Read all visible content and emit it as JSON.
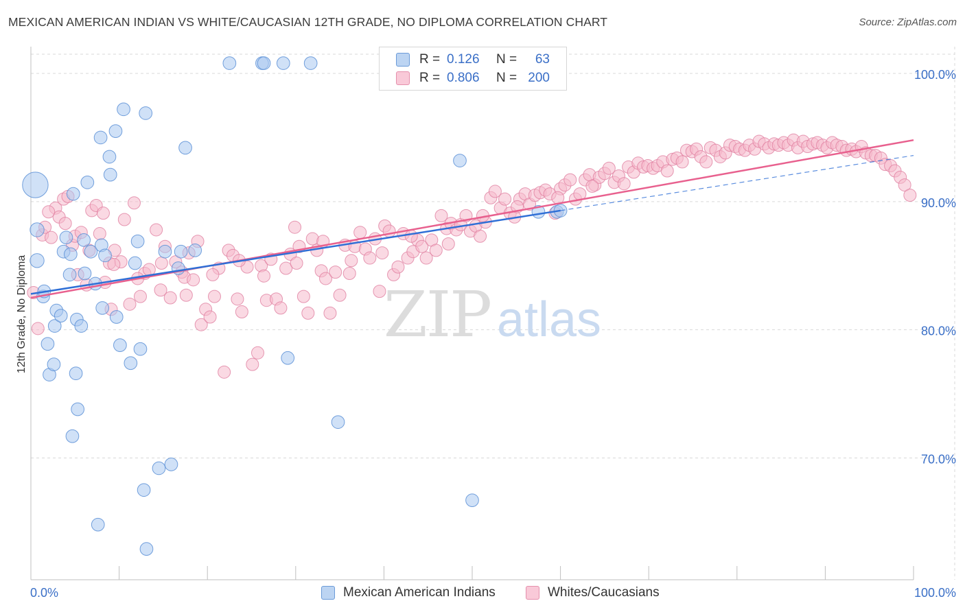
{
  "header": {
    "title": "MEXICAN AMERICAN INDIAN VS WHITE/CAUCASIAN 12TH GRADE, NO DIPLOMA CORRELATION CHART",
    "source": "Source: ZipAtlas.com"
  },
  "watermark": {
    "zip": "ZIP",
    "atlas": "atlas"
  },
  "legend": {
    "rows": [
      {
        "r_label": "R =",
        "r_value": "0.126",
        "n_label": "N =",
        "n_value": "63"
      },
      {
        "r_label": "R =",
        "r_value": "0.806",
        "n_label": "N =",
        "n_value": "200"
      }
    ]
  },
  "bottom_legend": {
    "series1": "Mexican American Indians",
    "series2": "Whites/Caucasians"
  },
  "colors": {
    "blue_fill": "#a9c8f0",
    "blue_stroke": "#5b8fd6",
    "blue_line": "#2f6fd6",
    "pink_fill": "#f5b9cc",
    "pink_stroke": "#e07fa0",
    "pink_line": "#e8608e",
    "tick_label": "#3a6fc7",
    "grid": "#d9d9d9"
  },
  "chart_data": {
    "type": "scatter",
    "title": "MEXICAN AMERICAN INDIAN VS WHITE/CAUCASIAN 12TH GRADE, NO DIPLOMA CORRELATION CHART",
    "xlabel": "",
    "ylabel": "12th Grade, No Diploma",
    "xlim": [
      0,
      100
    ],
    "ylim": [
      60.5,
      101.5
    ],
    "x_tick_labels": [
      {
        "value": 0,
        "label": "0.0%"
      },
      {
        "value": 100,
        "label": "100.0%"
      }
    ],
    "x_minor_ticks": [
      10,
      20,
      30,
      40,
      50,
      60,
      70,
      80,
      90
    ],
    "y_ticks": [
      {
        "value": 100,
        "label": "100.0%"
      },
      {
        "value": 90,
        "label": "90.0%"
      },
      {
        "value": 80,
        "label": "80.0%"
      },
      {
        "value": 70,
        "label": "70.0%"
      }
    ],
    "series": [
      {
        "name": "Mexican American Indians",
        "color": "blue",
        "r": 0.126,
        "n": 63,
        "trend_solid": {
          "x": [
            0,
            60
          ],
          "y": [
            82.8,
            89.3
          ]
        },
        "trend_dashed": {
          "x": [
            60,
            100
          ],
          "y": [
            89.3,
            93.6
          ]
        },
        "points": [
          [
            0.5,
            91.3,
            22
          ],
          [
            0.7,
            87.8,
            12
          ],
          [
            0.7,
            85.4,
            12
          ],
          [
            1.4,
            82.6,
            11
          ],
          [
            1.5,
            83.0,
            11
          ],
          [
            1.9,
            78.9,
            11
          ],
          [
            2.1,
            76.5,
            11
          ],
          [
            2.6,
            77.3,
            11
          ],
          [
            2.7,
            80.3,
            11
          ],
          [
            2.9,
            81.5,
            11
          ],
          [
            3.4,
            81.1,
            11
          ],
          [
            3.7,
            86.1,
            11
          ],
          [
            4.0,
            87.2,
            11
          ],
          [
            4.4,
            84.3,
            11
          ],
          [
            4.5,
            85.9,
            11
          ],
          [
            4.7,
            71.7,
            11
          ],
          [
            4.8,
            90.6,
            11
          ],
          [
            5.1,
            76.6,
            11
          ],
          [
            5.2,
            80.8,
            11
          ],
          [
            5.3,
            73.8,
            11
          ],
          [
            5.7,
            80.3,
            11
          ],
          [
            6.0,
            87.0,
            11
          ],
          [
            6.1,
            84.4,
            11
          ],
          [
            6.4,
            91.5,
            11
          ],
          [
            6.8,
            86.1,
            11
          ],
          [
            7.3,
            83.6,
            11
          ],
          [
            7.6,
            64.8,
            11
          ],
          [
            7.9,
            95.0,
            11
          ],
          [
            8.0,
            86.6,
            11
          ],
          [
            8.1,
            81.7,
            11
          ],
          [
            8.4,
            85.8,
            11
          ],
          [
            8.9,
            93.5,
            11
          ],
          [
            9.0,
            92.1,
            11
          ],
          [
            9.6,
            95.5,
            11
          ],
          [
            9.7,
            81.0,
            11
          ],
          [
            10.1,
            78.8,
            11
          ],
          [
            10.5,
            97.2,
            11
          ],
          [
            11.3,
            77.4,
            11
          ],
          [
            11.8,
            85.2,
            11
          ],
          [
            12.1,
            86.9,
            11
          ],
          [
            12.4,
            78.5,
            11
          ],
          [
            12.8,
            67.5,
            11
          ],
          [
            13.0,
            96.9,
            11
          ],
          [
            13.1,
            62.9,
            11
          ],
          [
            14.5,
            69.2,
            11
          ],
          [
            15.2,
            86.1,
            11
          ],
          [
            15.9,
            69.5,
            11
          ],
          [
            16.7,
            84.8,
            11
          ],
          [
            17.0,
            86.1,
            11
          ],
          [
            17.5,
            94.2,
            11
          ],
          [
            18.6,
            86.2,
            11
          ],
          [
            22.5,
            100.8,
            11
          ],
          [
            26.2,
            100.8,
            11
          ],
          [
            26.4,
            100.8,
            11
          ],
          [
            28.6,
            100.8,
            11
          ],
          [
            29.1,
            77.8,
            11
          ],
          [
            31.7,
            100.8,
            11
          ],
          [
            34.8,
            72.8,
            11
          ],
          [
            48.6,
            93.2,
            11
          ],
          [
            50.0,
            66.7,
            11
          ],
          [
            57.5,
            89.2,
            11
          ],
          [
            59.6,
            89.2,
            11
          ],
          [
            60.0,
            89.3,
            11
          ]
        ]
      },
      {
        "name": "Whites/Caucasians",
        "color": "pink",
        "r": 0.806,
        "n": 200,
        "trend_solid": {
          "x": [
            0,
            100
          ],
          "y": [
            82.5,
            94.8
          ]
        },
        "points": [
          [
            0.3,
            82.9
          ],
          [
            0.8,
            80.1
          ],
          [
            1.3,
            87.4
          ],
          [
            1.6,
            88.0
          ],
          [
            2.3,
            87.2
          ],
          [
            2.8,
            89.5
          ],
          [
            3.2,
            88.8
          ],
          [
            3.7,
            90.2
          ],
          [
            4.2,
            90.4
          ],
          [
            4.7,
            86.6
          ],
          [
            5.0,
            87.3
          ],
          [
            5.3,
            84.3
          ],
          [
            5.7,
            87.6
          ],
          [
            6.3,
            83.5
          ],
          [
            6.9,
            89.3
          ],
          [
            7.4,
            89.7
          ],
          [
            7.8,
            87.5
          ],
          [
            8.2,
            89.1
          ],
          [
            8.4,
            83.7
          ],
          [
            8.9,
            85.2
          ],
          [
            9.1,
            81.6
          ],
          [
            9.5,
            86.2
          ],
          [
            10.2,
            85.3
          ],
          [
            10.6,
            88.6
          ],
          [
            11.2,
            82.0
          ],
          [
            11.7,
            89.9
          ],
          [
            12.4,
            82.6
          ],
          [
            12.9,
            84.4
          ],
          [
            13.4,
            84.7
          ],
          [
            14.2,
            87.8
          ],
          [
            14.8,
            85.2
          ],
          [
            15.2,
            86.5
          ],
          [
            15.8,
            82.5
          ],
          [
            16.4,
            85.3
          ],
          [
            17.1,
            84.5
          ],
          [
            17.4,
            84.1
          ],
          [
            17.9,
            86.0
          ],
          [
            18.4,
            83.9
          ],
          [
            18.9,
            86.9
          ],
          [
            19.3,
            80.4
          ],
          [
            19.8,
            81.6
          ],
          [
            20.3,
            81.0
          ],
          [
            20.8,
            82.6
          ],
          [
            21.3,
            84.8
          ],
          [
            21.9,
            76.7
          ],
          [
            22.4,
            86.2
          ],
          [
            22.9,
            85.8
          ],
          [
            23.4,
            82.4
          ],
          [
            23.9,
            81.4
          ],
          [
            24.5,
            84.9
          ],
          [
            25.1,
            77.3
          ],
          [
            25.7,
            78.2
          ],
          [
            26.1,
            85.0
          ],
          [
            26.7,
            82.3
          ],
          [
            27.2,
            85.5
          ],
          [
            27.8,
            82.4
          ],
          [
            28.3,
            81.7
          ],
          [
            28.9,
            84.8
          ],
          [
            29.4,
            85.9
          ],
          [
            29.9,
            88.0
          ],
          [
            30.4,
            86.5
          ],
          [
            30.9,
            82.6
          ],
          [
            31.4,
            81.3
          ],
          [
            31.9,
            87.1
          ],
          [
            32.4,
            86.2
          ],
          [
            32.9,
            84.6
          ],
          [
            33.4,
            84.0
          ],
          [
            33.9,
            81.3
          ],
          [
            34.5,
            84.5
          ],
          [
            35.0,
            82.7
          ],
          [
            35.6,
            86.6
          ],
          [
            36.1,
            84.4
          ],
          [
            36.7,
            86.5
          ],
          [
            37.3,
            87.6
          ],
          [
            37.9,
            86.3
          ],
          [
            38.4,
            85.6
          ],
          [
            39.0,
            87.1
          ],
          [
            39.5,
            83.0
          ],
          [
            40.1,
            88.1
          ],
          [
            40.6,
            87.7
          ],
          [
            41.1,
            84.3
          ],
          [
            41.6,
            84.9
          ],
          [
            42.2,
            87.5
          ],
          [
            42.7,
            85.6
          ],
          [
            43.3,
            86.1
          ],
          [
            43.8,
            87.0
          ],
          [
            44.3,
            86.5
          ],
          [
            44.8,
            85.6
          ],
          [
            45.4,
            87.0
          ],
          [
            45.9,
            86.2
          ],
          [
            46.5,
            88.9
          ],
          [
            47.1,
            87.9
          ],
          [
            47.6,
            88.3
          ],
          [
            48.2,
            87.8
          ],
          [
            48.7,
            88.2
          ],
          [
            49.3,
            88.9
          ],
          [
            49.8,
            87.7
          ],
          [
            50.4,
            88.1
          ],
          [
            50.9,
            87.3
          ],
          [
            51.5,
            88.4
          ],
          [
            52.1,
            90.3
          ],
          [
            52.6,
            90.8
          ],
          [
            53.2,
            89.5
          ],
          [
            53.7,
            90.2
          ],
          [
            54.3,
            89.1
          ],
          [
            54.8,
            88.8
          ],
          [
            55.4,
            90.2
          ],
          [
            56.0,
            90.6
          ],
          [
            56.5,
            89.8
          ],
          [
            57.1,
            90.5
          ],
          [
            57.7,
            90.7
          ],
          [
            58.3,
            90.9
          ],
          [
            58.8,
            90.6
          ],
          [
            59.4,
            89.1
          ],
          [
            60.0,
            91.0
          ],
          [
            60.5,
            91.3
          ],
          [
            61.1,
            91.7
          ],
          [
            61.7,
            90.2
          ],
          [
            62.2,
            90.6
          ],
          [
            62.8,
            91.7
          ],
          [
            63.3,
            92.1
          ],
          [
            63.9,
            91.3
          ],
          [
            64.4,
            91.9
          ],
          [
            65.0,
            92.2
          ],
          [
            65.5,
            92.6
          ],
          [
            66.1,
            91.5
          ],
          [
            66.6,
            92.0
          ],
          [
            67.2,
            91.4
          ],
          [
            67.7,
            92.7
          ],
          [
            68.3,
            92.3
          ],
          [
            68.8,
            93.0
          ],
          [
            69.4,
            92.7
          ],
          [
            69.9,
            92.8
          ],
          [
            70.5,
            92.6
          ],
          [
            71.0,
            92.8
          ],
          [
            71.6,
            93.1
          ],
          [
            72.1,
            92.4
          ],
          [
            72.7,
            93.3
          ],
          [
            73.2,
            93.4
          ],
          [
            73.8,
            93.1
          ],
          [
            74.3,
            94.0
          ],
          [
            74.9,
            93.9
          ],
          [
            75.4,
            94.1
          ],
          [
            75.9,
            93.5
          ],
          [
            76.5,
            93.1
          ],
          [
            77.0,
            94.2
          ],
          [
            77.6,
            94.0
          ],
          [
            78.1,
            93.5
          ],
          [
            78.7,
            93.8
          ],
          [
            79.2,
            94.4
          ],
          [
            79.8,
            94.3
          ],
          [
            80.3,
            94.1
          ],
          [
            80.9,
            94.0
          ],
          [
            81.4,
            94.4
          ],
          [
            82.0,
            94.1
          ],
          [
            82.5,
            94.7
          ],
          [
            83.1,
            94.5
          ],
          [
            83.6,
            94.2
          ],
          [
            84.2,
            94.5
          ],
          [
            84.7,
            94.4
          ],
          [
            85.3,
            94.6
          ],
          [
            85.8,
            94.4
          ],
          [
            86.4,
            94.8
          ],
          [
            86.9,
            94.2
          ],
          [
            87.5,
            94.7
          ],
          [
            88.0,
            94.3
          ],
          [
            88.6,
            94.5
          ],
          [
            89.1,
            94.6
          ],
          [
            89.7,
            94.4
          ],
          [
            90.2,
            94.2
          ],
          [
            90.8,
            94.6
          ],
          [
            91.3,
            94.4
          ],
          [
            91.9,
            94.3
          ],
          [
            92.4,
            94.0
          ],
          [
            93.0,
            94.1
          ],
          [
            93.5,
            93.9
          ],
          [
            94.1,
            94.3
          ],
          [
            94.6,
            93.8
          ],
          [
            95.2,
            93.6
          ],
          [
            95.7,
            93.6
          ],
          [
            96.3,
            93.4
          ],
          [
            96.8,
            92.9
          ],
          [
            97.4,
            92.8
          ],
          [
            97.9,
            92.4
          ],
          [
            98.5,
            91.9
          ],
          [
            99.0,
            91.3
          ],
          [
            99.6,
            90.5
          ],
          [
            2.0,
            89.2
          ],
          [
            3.9,
            88.3
          ],
          [
            6.6,
            86.2
          ],
          [
            9.4,
            85.1
          ],
          [
            12.1,
            84.0
          ],
          [
            14.7,
            83.1
          ],
          [
            17.6,
            82.7
          ],
          [
            20.6,
            84.3
          ],
          [
            23.6,
            85.4
          ],
          [
            26.4,
            84.2
          ],
          [
            30.1,
            85.2
          ],
          [
            33.1,
            86.9
          ],
          [
            36.3,
            85.4
          ],
          [
            39.8,
            86.0
          ],
          [
            43.1,
            87.3
          ],
          [
            47.3,
            86.7
          ],
          [
            51.2,
            88.9
          ],
          [
            55.1,
            89.6
          ],
          [
            59.7,
            90.3
          ],
          [
            63.6,
            91.2
          ]
        ]
      }
    ]
  }
}
